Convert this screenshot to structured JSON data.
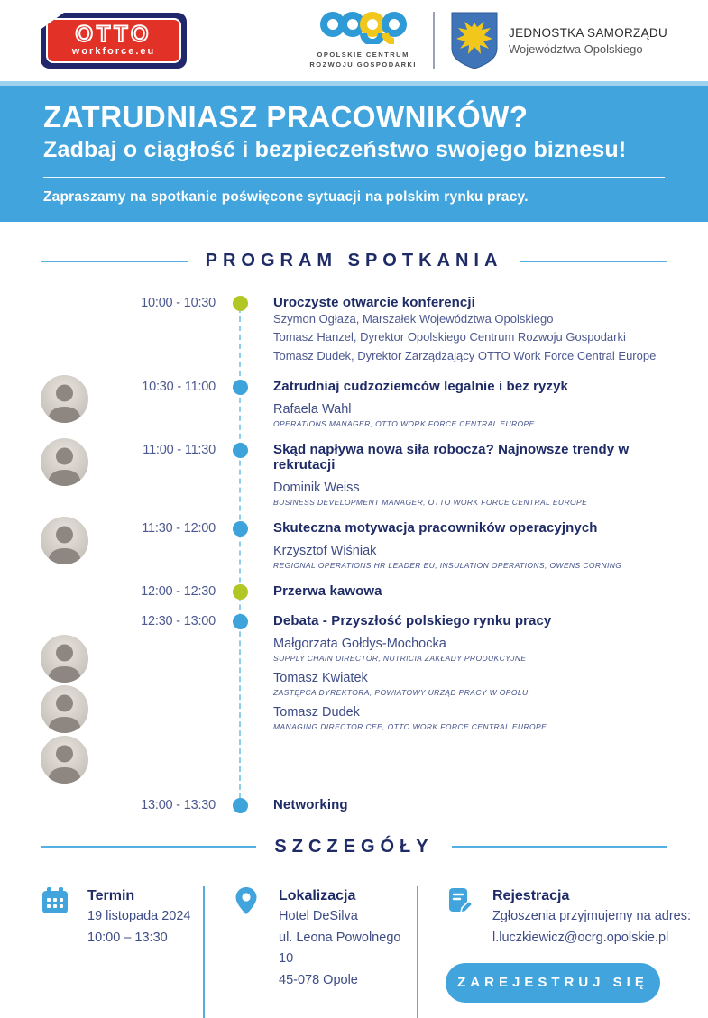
{
  "header": {
    "otto_logo": {
      "word": "OTTO",
      "sub": "workforce.eu"
    },
    "ocrg": {
      "caption_line1": "OPOLSKIE CENTRUM",
      "caption_line2": "ROZWOJU GOSPODARKI"
    },
    "jst": {
      "line1": "JEDNOSTKA SAMORZĄDU",
      "line2": "Województwa Opolskiego"
    }
  },
  "banner": {
    "title": "ZATRUDNIASZ PRACOWNIKÓW?",
    "subtitle": "Zadbaj o ciągłość i bezpieczeństwo swojego biznesu!",
    "lead": "Zapraszamy na spotkanie poświęcone sytuacji na polskim rynku pracy."
  },
  "program": {
    "heading": "PROGRAM SPOTKANIA",
    "items": [
      {
        "time": "10:00 - 10:30",
        "dot": "green",
        "title": "Uroczyste otwarcie konferencji",
        "lines": [
          "Szymon Ogłaza, Marszałek Województwa Opolskiego",
          "Tomasz Hanzel, Dyrektor Opolskiego Centrum Rozwoju Gospodarki",
          "Tomasz Dudek, Dyrektor Zarządzający OTTO Work Force Central Europe"
        ]
      },
      {
        "time": "10:30 - 11:00",
        "dot": "blue",
        "title": "Zatrudniaj cudzoziemców legalnie i bez ryzyk",
        "speakers": [
          {
            "name": "Rafaela Wahl",
            "role": "OPERATIONS MANAGER, OTTO WORK FORCE CENTRAL EUROPE",
            "avatar": true
          }
        ]
      },
      {
        "time": "11:00 - 11:30",
        "dot": "blue",
        "title": "Skąd napływa nowa siła robocza? Najnowsze trendy w rekrutacji",
        "speakers": [
          {
            "name": "Dominik Weiss",
            "role": "BUSINESS DEVELOPMENT MANAGER, OTTO WORK FORCE CENTRAL EUROPE",
            "avatar": true
          }
        ]
      },
      {
        "time": "11:30 - 12:00",
        "dot": "blue",
        "title": "Skuteczna motywacja pracowników operacyjnych",
        "speakers": [
          {
            "name": "Krzysztof Wiśniak",
            "role": "REGIONAL OPERATIONS HR LEADER EU, INSULATION OPERATIONS, OWENS CORNING",
            "avatar": true
          }
        ]
      },
      {
        "time": "12:00 - 12:30",
        "dot": "green",
        "title": "Przerwa kawowa"
      },
      {
        "time": "12:30 - 13:00",
        "dot": "blue",
        "title": "Debata - Przyszłość polskiego rynku pracy",
        "speakers": [
          {
            "name": "Małgorzata Gołdys-Mochocka",
            "role": "SUPPLY CHAIN DIRECTOR, NUTRICIA ZAKŁADY PRODUKCYJNE",
            "avatar": true
          },
          {
            "name": "Tomasz Kwiatek",
            "role": "ZASTĘPCA DYREKTORA, POWIATOWY URZĄD PRACY W OPOLU",
            "avatar": true
          },
          {
            "name": "Tomasz Dudek",
            "role": "MANAGING DIRECTOR CEE, OTTO WORK FORCE CENTRAL EUROPE",
            "avatar": true
          }
        ]
      },
      {
        "time": "13:00 - 13:30",
        "dot": "blue",
        "title": "Networking"
      }
    ]
  },
  "details": {
    "heading": "SZCZEGÓŁY",
    "columns": [
      {
        "icon": "calendar-icon",
        "title": "Termin",
        "lines": [
          "19 listopada 2024",
          "10:00 – 13:30"
        ]
      },
      {
        "icon": "map-pin-icon",
        "title": "Lokalizacja",
        "lines": [
          "Hotel DeSilva",
          "ul. Leona Powolnego 10",
          "45-078 Opole"
        ]
      },
      {
        "icon": "registration-icon",
        "title": "Rejestracja",
        "lines": [
          "Zgłoszenia przyjmujemy na adres:",
          "l.luczkiewicz@ocrg.opolskie.pl"
        ],
        "button": "ZAREJESTRUJ SIĘ"
      }
    ]
  },
  "colors": {
    "brand_blue": "#41A4DC",
    "navy": "#1E2B66",
    "slate": "#4C5890",
    "lime": "#B2C625",
    "red": "#E23127",
    "gold": "#F2C71B",
    "shield_blue": "#3F74B8"
  }
}
